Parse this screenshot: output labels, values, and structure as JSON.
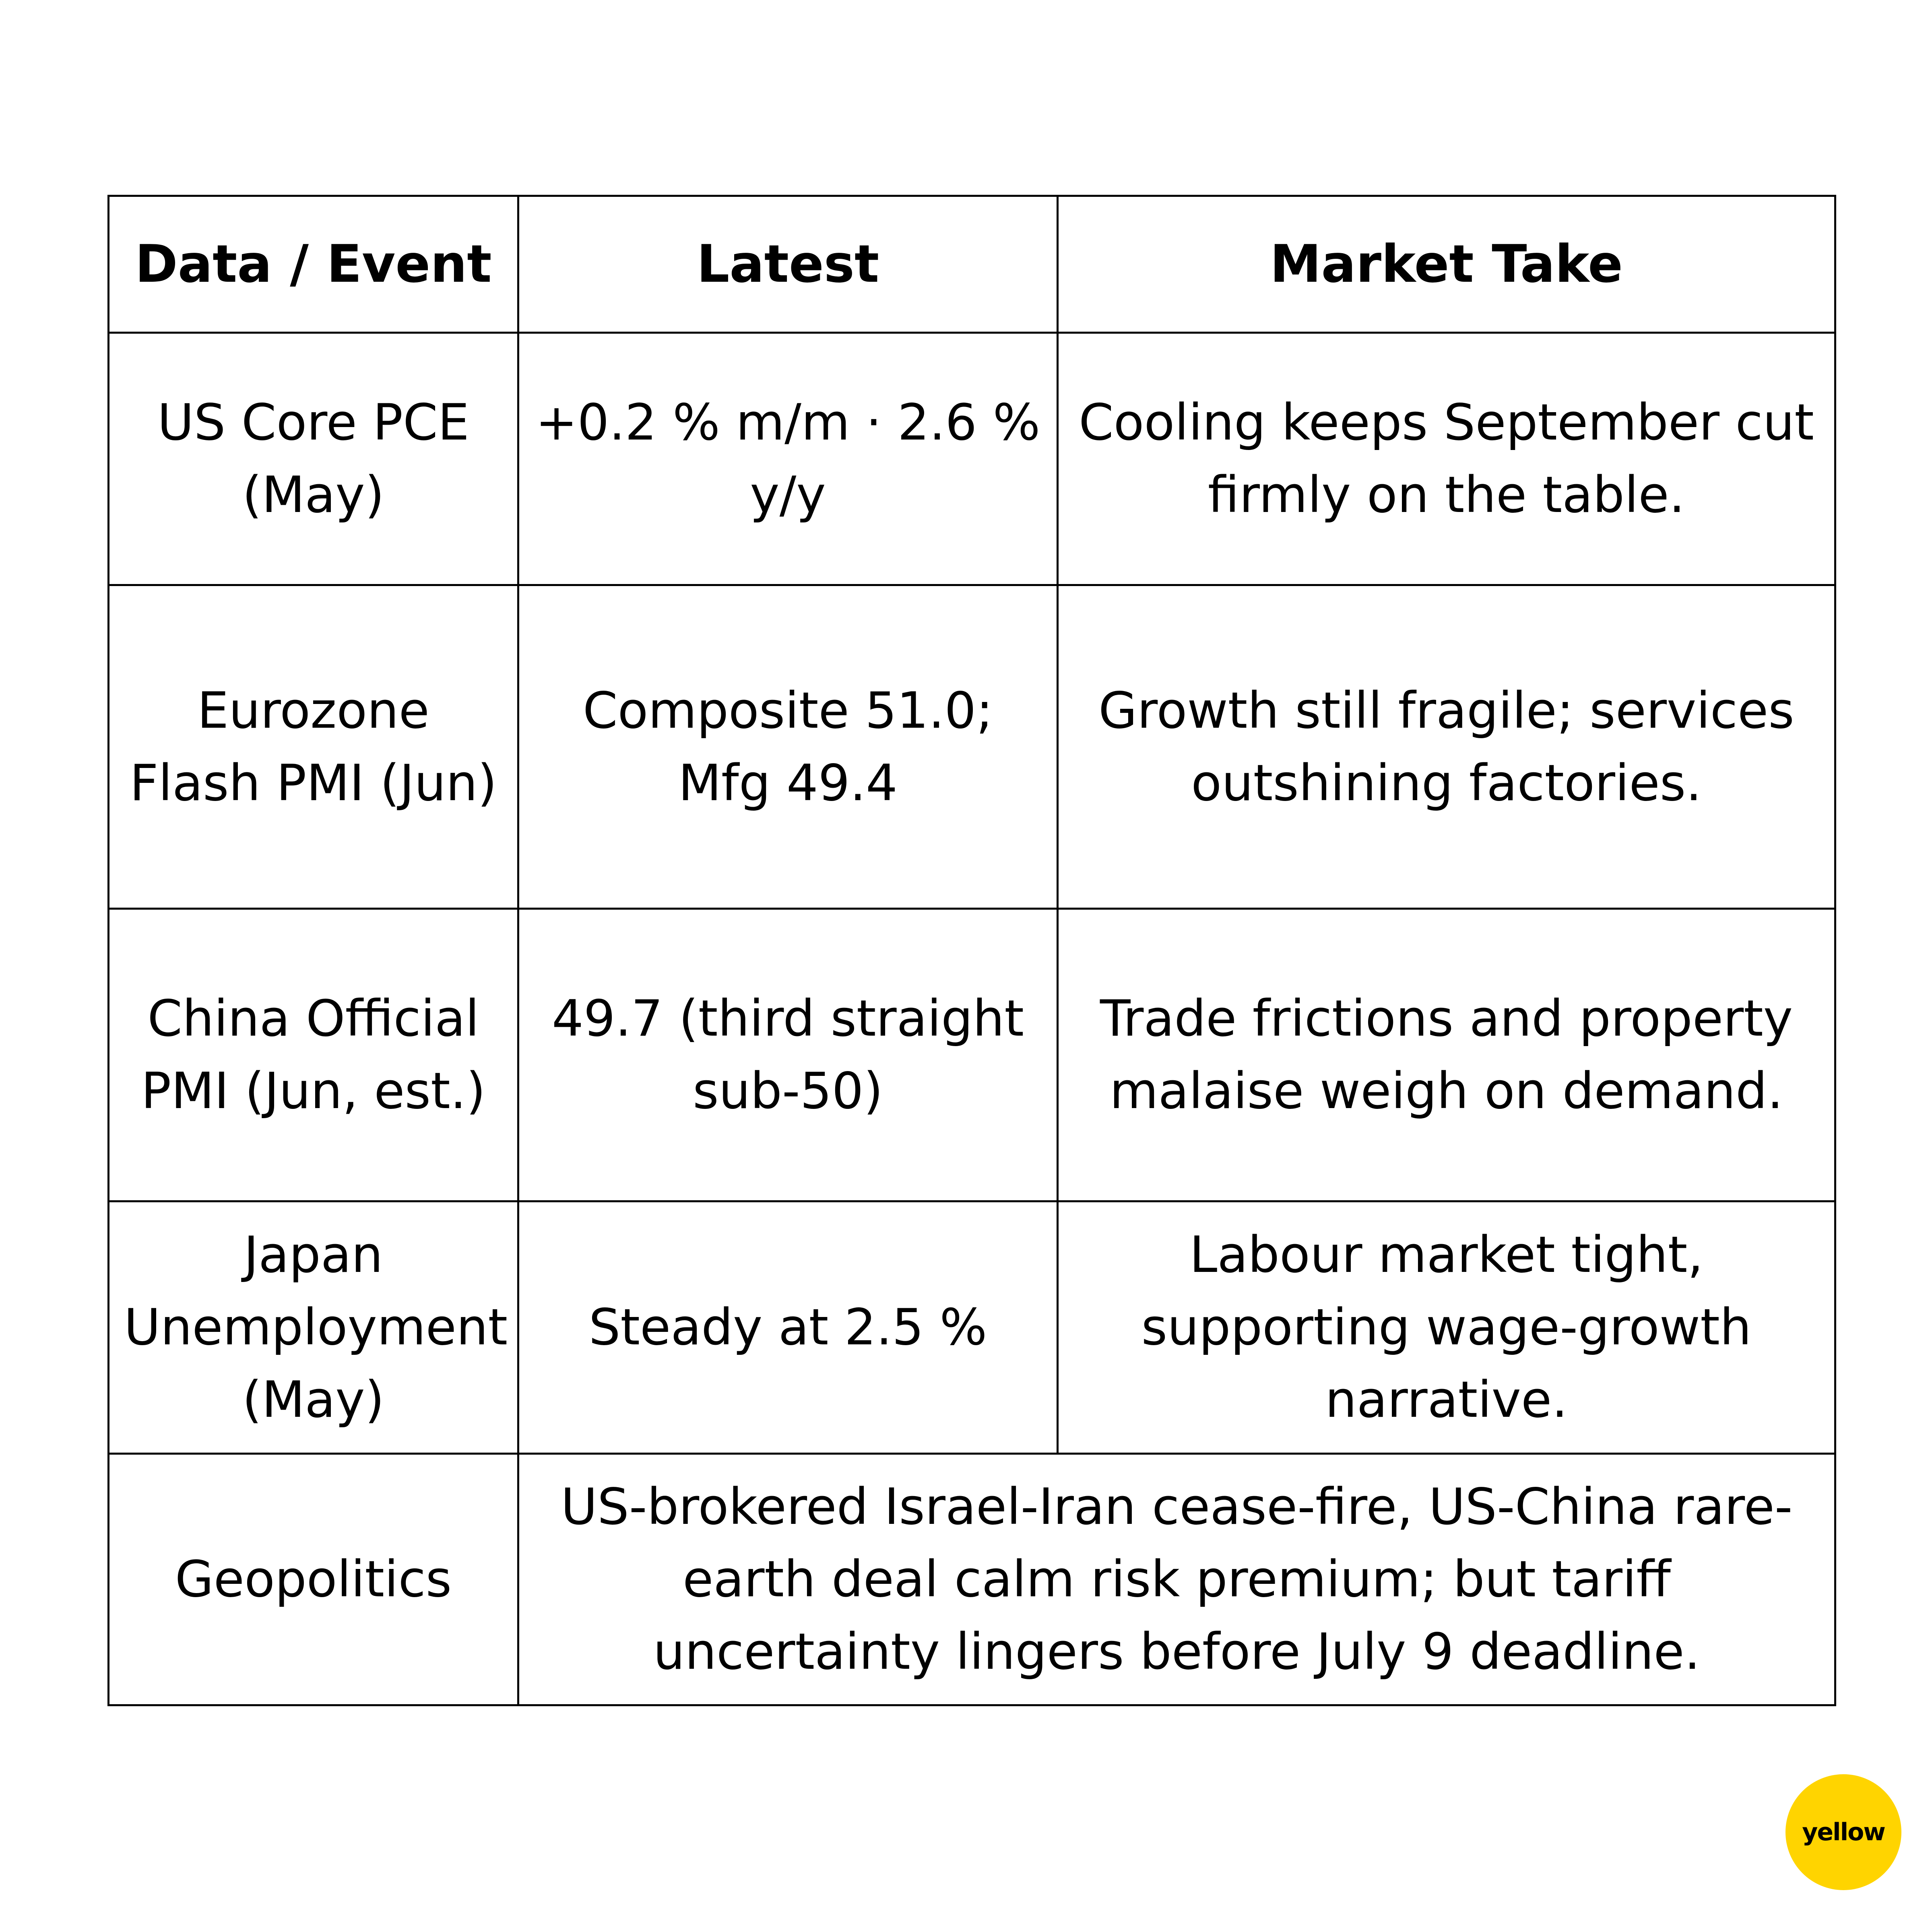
{
  "table": {
    "headers": [
      "Data / Event",
      "Latest",
      "Market Take"
    ],
    "rows": [
      {
        "event": "US Core PCE (May)",
        "latest": "+0.2 % m/m · 2.6 % y/y",
        "take": "Cooling keeps September cut firmly on the table."
      },
      {
        "event": "Eurozone Flash PMI (Jun)",
        "latest": "Composite 51.0; Mfg 49.4",
        "take": "Growth still fragile; services outshining factories."
      },
      {
        "event": "China Official PMI (Jun, est.)",
        "latest": "49.7 (third straight sub-50)",
        "take": "Trade frictions and property malaise weigh on demand."
      },
      {
        "event": "Japan Unemployment (May)",
        "latest": "Steady at 2.5 %",
        "take": "Labour market tight, supporting wage-growth narrative."
      }
    ],
    "geopolitics": {
      "event": "Geopolitics",
      "summary": "US-brokered Israel-Iran cease-fire, US-China rare-earth deal calm risk premium; but tariff uncertainty lingers before July 9 deadline."
    }
  },
  "brand": {
    "logo_text": "yellow",
    "color": "#FFD400"
  }
}
